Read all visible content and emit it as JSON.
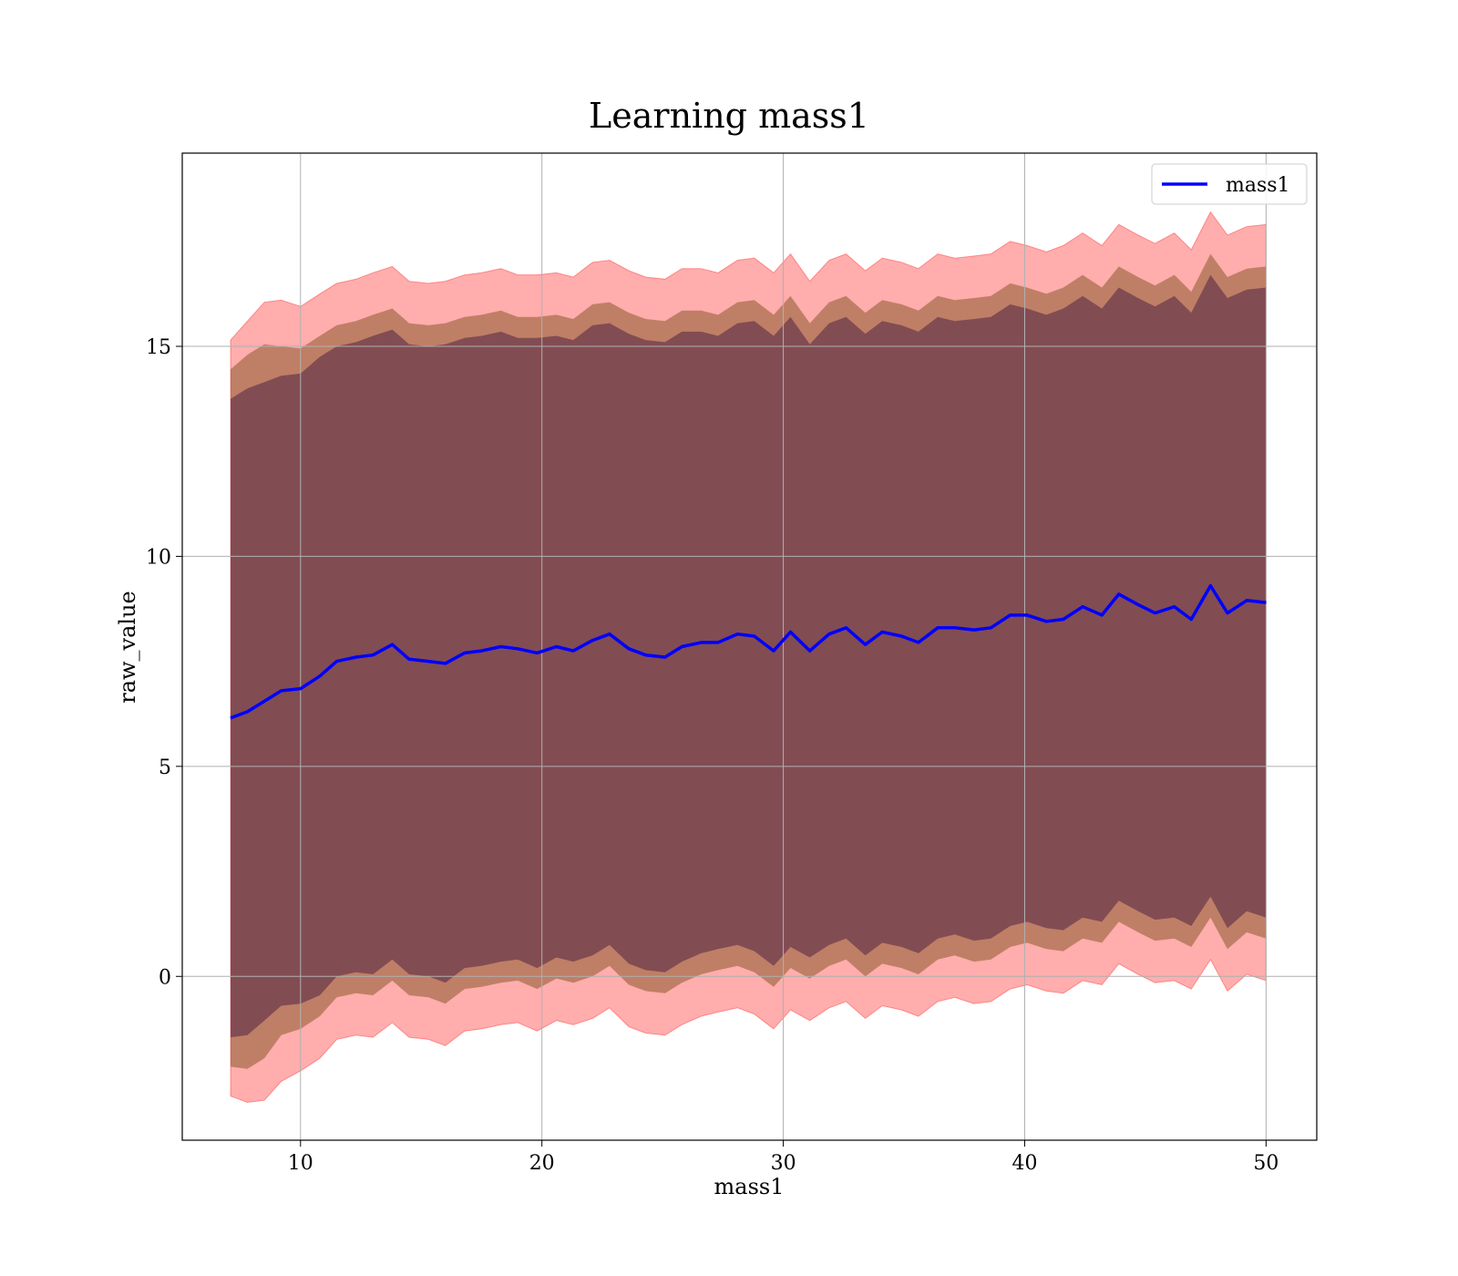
{
  "chart_data": {
    "type": "line",
    "title": "Learning mass1",
    "xlabel": "mass1",
    "ylabel": "raw_value",
    "xlim": [
      5.1,
      52.1
    ],
    "ylim": [
      -3.9,
      19.6
    ],
    "xticks": [
      10,
      20,
      30,
      40,
      50
    ],
    "yticks": [
      0,
      5,
      10,
      15
    ],
    "grid": true,
    "legend_position": "top-right",
    "colors": {
      "line": "#0000ff",
      "band_outer": "#ff0000",
      "band_middle": "#8b5a2b",
      "band_inner": "#6e3b4e",
      "grid": "#b0b0b0"
    },
    "series": [
      {
        "name": "mass1",
        "x": [
          7.1,
          7.8,
          8.5,
          9.2,
          10.0,
          10.8,
          11.5,
          12.3,
          13.0,
          13.8,
          14.5,
          15.3,
          16.0,
          16.8,
          17.5,
          18.3,
          19.0,
          19.8,
          20.6,
          21.3,
          22.1,
          22.8,
          23.6,
          24.3,
          25.1,
          25.8,
          26.6,
          27.3,
          28.1,
          28.8,
          29.6,
          30.3,
          31.1,
          31.9,
          32.6,
          33.4,
          34.1,
          34.9,
          35.6,
          36.4,
          37.1,
          37.9,
          38.6,
          39.4,
          40.1,
          40.9,
          41.6,
          42.4,
          43.2,
          43.9,
          44.7,
          45.4,
          46.2,
          46.9,
          47.7,
          48.4,
          49.2,
          50.0
        ],
        "y": [
          6.15,
          6.3,
          6.55,
          6.8,
          6.85,
          7.15,
          7.5,
          7.6,
          7.65,
          7.9,
          7.55,
          7.5,
          7.45,
          7.7,
          7.75,
          7.85,
          7.8,
          7.7,
          7.85,
          7.75,
          8.0,
          8.15,
          7.8,
          7.65,
          7.6,
          7.85,
          7.95,
          7.95,
          8.15,
          8.1,
          7.75,
          8.2,
          7.75,
          8.15,
          8.3,
          7.9,
          8.2,
          8.1,
          7.95,
          8.3,
          8.3,
          8.25,
          8.3,
          8.6,
          8.6,
          8.45,
          8.5,
          8.8,
          8.6,
          9.1,
          8.85,
          8.65,
          8.8,
          8.5,
          9.3,
          8.65,
          8.95,
          8.9
        ],
        "spread_outer": [
          9.0,
          9.3,
          9.5,
          9.3,
          9.1,
          9.1,
          9.0,
          9.0,
          9.1,
          9.0,
          9.0,
          9.0,
          9.1,
          9.0,
          9.0,
          9.0,
          8.9,
          9.0,
          8.9,
          8.9,
          9.0,
          8.9,
          9.0,
          9.0,
          9.0,
          9.0,
          8.9,
          8.8,
          8.9,
          9.0,
          9.0,
          9.0,
          8.8,
          8.9,
          8.9,
          8.9,
          8.9,
          8.9,
          8.9,
          8.9,
          8.8,
          8.9,
          8.9,
          8.9,
          8.8,
          8.8,
          8.9,
          8.9,
          8.8,
          8.8,
          8.8,
          8.8,
          8.9,
          8.8,
          8.9,
          9.0,
          8.9,
          9.0
        ],
        "spread_middle": [
          8.3,
          8.5,
          8.5,
          8.2,
          8.1,
          8.1,
          8.0,
          8.0,
          8.1,
          8.0,
          8.0,
          8.0,
          8.1,
          8.0,
          8.0,
          8.0,
          7.9,
          8.0,
          7.9,
          7.9,
          8.0,
          7.9,
          8.0,
          8.0,
          8.0,
          8.0,
          7.9,
          7.8,
          7.9,
          8.0,
          8.0,
          8.0,
          7.8,
          7.9,
          7.9,
          7.9,
          7.9,
          7.9,
          7.9,
          7.9,
          7.8,
          7.9,
          7.9,
          7.9,
          7.8,
          7.8,
          7.9,
          7.9,
          7.8,
          7.8,
          7.8,
          7.8,
          7.9,
          7.8,
          7.9,
          8.0,
          7.9,
          8.0
        ],
        "spread_inner": [
          7.6,
          7.7,
          7.6,
          7.5,
          7.5,
          7.6,
          7.5,
          7.5,
          7.6,
          7.5,
          7.5,
          7.5,
          7.6,
          7.5,
          7.5,
          7.5,
          7.4,
          7.5,
          7.4,
          7.4,
          7.5,
          7.4,
          7.5,
          7.5,
          7.5,
          7.5,
          7.4,
          7.3,
          7.4,
          7.5,
          7.5,
          7.5,
          7.3,
          7.4,
          7.4,
          7.4,
          7.4,
          7.4,
          7.4,
          7.4,
          7.3,
          7.4,
          7.4,
          7.4,
          7.3,
          7.3,
          7.4,
          7.4,
          7.3,
          7.3,
          7.3,
          7.3,
          7.4,
          7.3,
          7.4,
          7.5,
          7.4,
          7.5
        ]
      }
    ]
  }
}
